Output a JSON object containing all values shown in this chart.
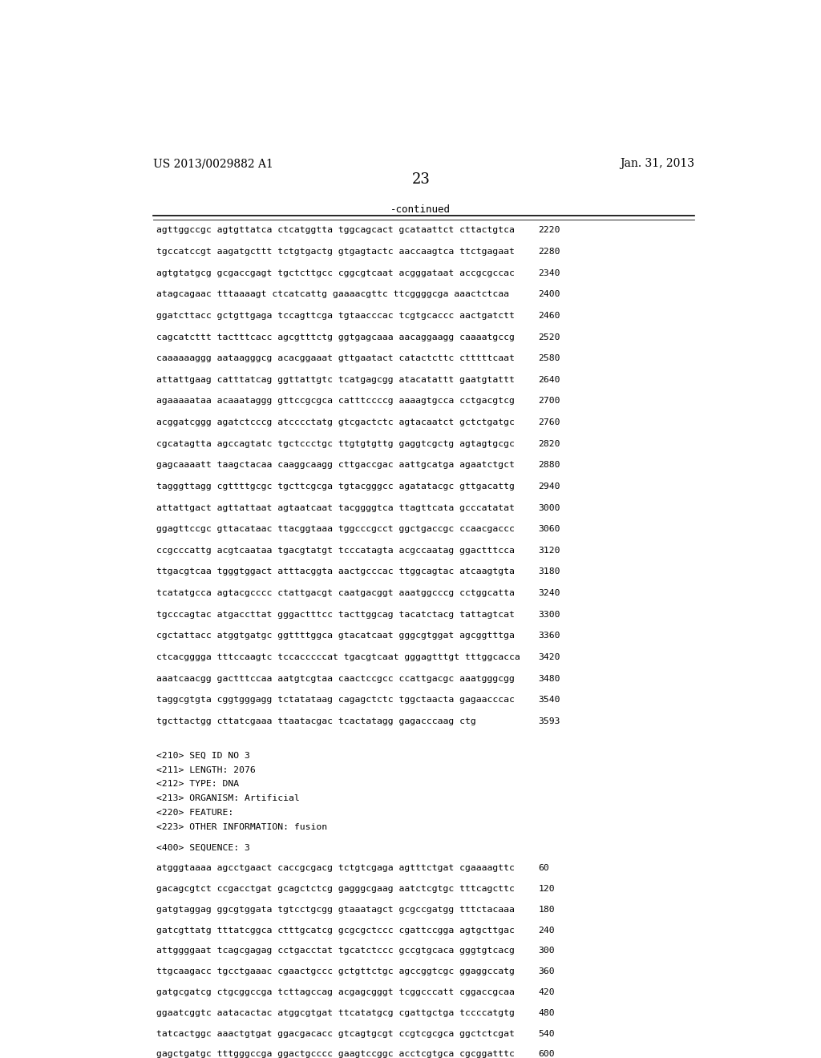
{
  "header_left": "US 2013/0029882 A1",
  "header_right": "Jan. 31, 2013",
  "page_number": "23",
  "continued_label": "-continued",
  "background_color": "#ffffff",
  "text_color": "#000000",
  "sequence_lines": [
    [
      "agttggccgc agtgttatca ctcatggtta tggcagcact gcataattct cttactgtca",
      "2220"
    ],
    [
      "tgccatccgt aagatgcttt tctgtgactg gtgagtactc aaccaagtca ttctgagaat",
      "2280"
    ],
    [
      "agtgtatgcg gcgaccgagt tgctcttgcc cggcgtcaat acgggataat accgcgccac",
      "2340"
    ],
    [
      "atagcagaac tttaaaagt ctcatcattg gaaaacgttc ttcggggcga aaactctcaa",
      "2400"
    ],
    [
      "ggatcttacc gctgttgaga tccagttcga tgtaacccac tcgtgcaccc aactgatctt",
      "2460"
    ],
    [
      "cagcatcttt tactttcacc agcgtttctg ggtgagcaaa aacaggaagg caaaatgccg",
      "2520"
    ],
    [
      "caaaaaaggg aataagggcg acacggaaat gttgaatact catactcttc ctttttcaat",
      "2580"
    ],
    [
      "attattgaag catttatcag ggttattgtc tcatgagcgg atacatattt gaatgtattt",
      "2640"
    ],
    [
      "agaaaaataa acaaataggg gttccgcgca catttccccg aaaagtgcca cctgacgtcg",
      "2700"
    ],
    [
      "acggatcggg agatctcccg atcccctatg gtcgactctc agtacaatct gctctgatgc",
      "2760"
    ],
    [
      "cgcatagtta agccagtatc tgctccctgc ttgtgtgttg gaggtcgctg agtagtgcgc",
      "2820"
    ],
    [
      "gagcaaaatt taagctacaa caaggcaagg cttgaccgac aattgcatga agaatctgct",
      "2880"
    ],
    [
      "tagggttagg cgttttgcgc tgcttcgcga tgtacgggcc agatatacgc gttgacattg",
      "2940"
    ],
    [
      "attattgact agttattaat agtaatcaat tacggggtca ttagttcata gcccatatat",
      "3000"
    ],
    [
      "ggagttccgc gttacataac ttacggtaaa tggcccgcct ggctgaccgc ccaacgaccc",
      "3060"
    ],
    [
      "ccgcccattg acgtcaataa tgacgtatgt tcccatagta acgccaatag ggactttcca",
      "3120"
    ],
    [
      "ttgacgtcaa tgggtggact atttacggta aactgcccac ttggcagtac atcaagtgta",
      "3180"
    ],
    [
      "tcatatgcca agtacgcccc ctattgacgt caatgacggt aaatggcccg cctggcatta",
      "3240"
    ],
    [
      "tgcccagtac atgaccttat gggactttcc tacttggcag tacatctacg tattagtcat",
      "3300"
    ],
    [
      "cgctattacc atggtgatgc ggttttggca gtacatcaat gggcgtggat agcggtttga",
      "3360"
    ],
    [
      "ctcacgggga tttccaagtc tccacccccat tgacgtcaat gggagtttgt tttggcacca",
      "3420"
    ],
    [
      "aaatcaacgg gactttccaa aatgtcgtaa caactccgcc ccattgacgc aaatgggcgg",
      "3480"
    ],
    [
      "taggcgtgta cggtgggagg tctatataag cagagctctc tggctaacta gagaacccac",
      "3540"
    ],
    [
      "tgcttactgg cttatcgaaa ttaatacgac tcactatagg gagacccaag ctg",
      "3593"
    ]
  ],
  "meta_block": [
    [
      "<210> SEQ ID NO 3",
      false
    ],
    [
      "<211> LENGTH: 2076",
      false
    ],
    [
      "<212> TYPE: DNA",
      false
    ],
    [
      "<213> ORGANISM: Artificial",
      false
    ],
    [
      "<220> FEATURE:",
      false
    ],
    [
      "<223> OTHER INFORMATION: fusion",
      false
    ],
    [
      "",
      false
    ],
    [
      "<400> SEQUENCE: 3",
      false
    ],
    [
      "",
      false
    ],
    [
      "atgggtaaaa agcctgaact caccgcgacg tctgtcgaga agtttctgat cgaaaagttc",
      "60"
    ],
    [
      "",
      false
    ],
    [
      "gacagcgtct ccgacctgat gcagctctcg gagggcgaag aatctcgtgc tttcagcttc",
      "120"
    ],
    [
      "",
      false
    ],
    [
      "gatgtaggag ggcgtggata tgtcctgcgg gtaaatagct gcgccgatgg tttctacaaa",
      "180"
    ],
    [
      "",
      false
    ],
    [
      "gatcgttatg tttatcggca ctttgcatcg gcgcgctccc cgattccgga agtgcttgac",
      "240"
    ],
    [
      "",
      false
    ],
    [
      "attggggaat tcagcgagag cctgacctat tgcatctccc gccgtgcaca gggtgtcacg",
      "300"
    ],
    [
      "",
      false
    ],
    [
      "ttgcaagacc tgcctgaaac cgaactgccc gctgttctgc agccggtcgc ggaggccatg",
      "360"
    ],
    [
      "",
      false
    ],
    [
      "gatgcgatcg ctgcggccga tcttagccag acgagcgggt tcggcccatt cggaccgcaa",
      "420"
    ],
    [
      "",
      false
    ],
    [
      "ggaatcggtc aatacactac atggcgtgat ttcatatgcg cgattgctga tccccatgtg",
      "480"
    ],
    [
      "",
      false
    ],
    [
      "tatcactggc aaactgtgat ggacgacacc gtcagtgcgt ccgtcgcgca ggctctcgat",
      "540"
    ],
    [
      "",
      false
    ],
    [
      "gagctgatgc tttgggccga ggactgcccc gaagtccggc acctcgtgca cgcggatttc",
      "600"
    ]
  ]
}
